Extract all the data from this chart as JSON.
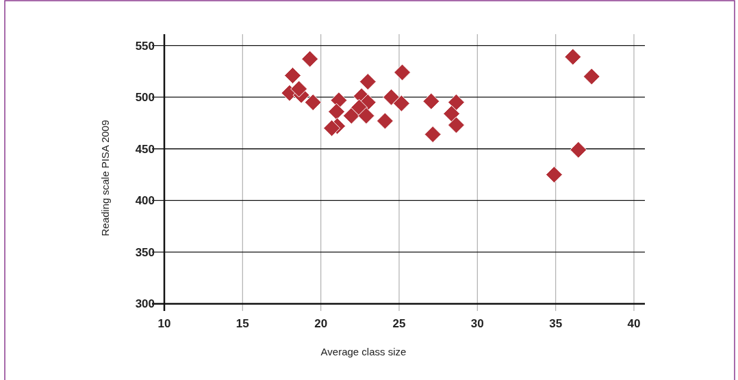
{
  "chart_data": {
    "type": "scatter",
    "xlabel": "Average class size",
    "ylabel": "Reading scale PISA 2009",
    "xlim": [
      10,
      40.7
    ],
    "xticks": [
      10,
      15,
      20,
      25,
      30,
      35,
      40
    ],
    "ylim": [
      293,
      561
    ],
    "yticks": [
      300,
      350,
      400,
      450,
      500,
      550
    ],
    "grid": true,
    "marker": "diamond",
    "series": [
      {
        "color": "#b22d35",
        "x": [
          19.3,
          18.2,
          18.0,
          18.75,
          18.6,
          19.5,
          21.15,
          21.0,
          21.05,
          20.7,
          21.95,
          23.0,
          22.6,
          23.0,
          22.45,
          22.9,
          24.1,
          25.2,
          24.5,
          25.15,
          27.05,
          27.15,
          28.65,
          28.35,
          28.65,
          36.1,
          37.3,
          36.45,
          34.9
        ],
        "values": [
          537,
          521,
          504,
          502,
          508,
          495,
          497,
          486,
          472,
          470,
          482,
          515,
          501,
          495,
          490,
          482,
          477,
          524,
          500,
          494,
          496,
          464,
          495,
          484,
          473,
          539,
          520,
          449,
          425
        ]
      }
    ]
  }
}
